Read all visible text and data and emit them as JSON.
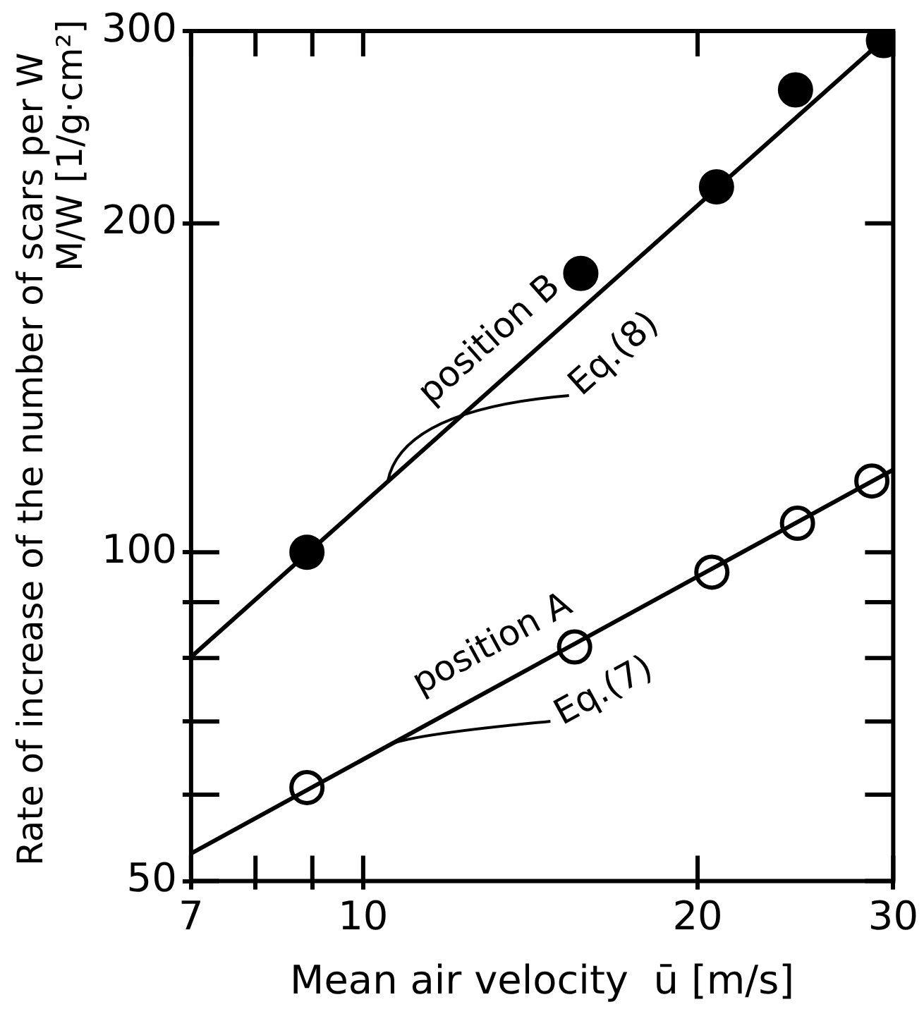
{
  "chart_data": {
    "type": "scatter",
    "xlabel": "Mean air velocity  ū [m/s]",
    "ylabel": "Rate of increase of the number of scars per W",
    "annotations": [
      "M/W [1/g·cm²]"
    ],
    "log": "xy",
    "xlim": [
      7,
      30
    ],
    "ylim": [
      50,
      300
    ],
    "xticks": [
      7,
      {
        "value": 8,
        "label": null
      },
      {
        "value": 9,
        "label": null
      },
      10,
      20,
      30
    ],
    "yticks": [
      50,
      {
        "value": 60,
        "label": null
      },
      {
        "value": 70,
        "label": null
      },
      {
        "value": 80,
        "label": null
      },
      {
        "value": 90,
        "label": null
      },
      100,
      200,
      300
    ],
    "line_style": "solid",
    "marker": "circle",
    "series": [
      {
        "type": "line",
        "name": "Eq.(8)",
        "marker": "none",
        "color": "#000000",
        "x": [
          7,
          30
        ],
        "values": [
          80.2,
          300
        ]
      },
      {
        "type": "line",
        "name": "Eq.(7)",
        "marker": "none",
        "color": "#000000",
        "x": [
          7,
          30
        ],
        "values": [
          53,
          119
        ]
      },
      {
        "name": "position B",
        "color": "#000000",
        "x": [
          8.9,
          15.7,
          20.8,
          24.5,
          29.4
        ],
        "values": [
          100,
          180,
          216,
          265,
          294
        ]
      },
      {
        "name": "position A",
        "color": "#ffffff",
        "x": [
          8.9,
          15.5,
          20.6,
          24.6,
          28.7
        ],
        "values": [
          60.9,
          81.9,
          95.9,
          106.3,
          116.2
        ]
      }
    ]
  }
}
